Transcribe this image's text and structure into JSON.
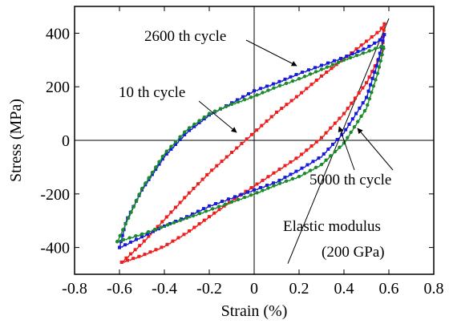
{
  "chart_data": {
    "type": "line",
    "xlabel": "Strain (%)",
    "ylabel": "Stress (MPa)",
    "xlim": [
      -0.8,
      0.8
    ],
    "ylim": [
      -500,
      500
    ],
    "xticks": [
      -0.8,
      -0.6,
      -0.4,
      -0.2,
      0,
      0.2,
      0.4,
      0.6,
      0.8
    ],
    "yticks": [
      -400,
      -200,
      0,
      200,
      400
    ],
    "xtick_labels": [
      "-0.8",
      "-0.6",
      "-0.4",
      "-0.2",
      "0",
      "0.2",
      "0.4",
      "0.6",
      "0.8"
    ],
    "ytick_labels": [
      "-400",
      "-200",
      "0",
      "200",
      "400"
    ],
    "series": [
      {
        "name": "10 th cycle",
        "color": "#ee1c1c",
        "marker": "square",
        "upper": [
          [
            -0.59,
            -455
          ],
          [
            -0.5,
            -385
          ],
          [
            -0.4,
            -295
          ],
          [
            -0.3,
            -205
          ],
          [
            -0.2,
            -120
          ],
          [
            -0.1,
            -45
          ],
          [
            0.0,
            30
          ],
          [
            0.1,
            105
          ],
          [
            0.2,
            170
          ],
          [
            0.3,
            240
          ],
          [
            0.4,
            305
          ],
          [
            0.5,
            370
          ],
          [
            0.56,
            410
          ],
          [
            0.58,
            435
          ]
        ],
        "lower": [
          [
            0.58,
            435
          ],
          [
            0.57,
            330
          ],
          [
            0.5,
            215
          ],
          [
            0.4,
            100
          ],
          [
            0.3,
            10
          ],
          [
            0.2,
            -60
          ],
          [
            0.1,
            -115
          ],
          [
            0.0,
            -170
          ],
          [
            -0.1,
            -225
          ],
          [
            -0.2,
            -285
          ],
          [
            -0.3,
            -345
          ],
          [
            -0.4,
            -395
          ],
          [
            -0.5,
            -430
          ],
          [
            -0.59,
            -455
          ]
        ]
      },
      {
        "name": "2600 th cycle",
        "color": "#1a1adc",
        "marker": "square",
        "upper": [
          [
            -0.6,
            -400
          ],
          [
            -0.57,
            -300
          ],
          [
            -0.5,
            -185
          ],
          [
            -0.4,
            -60
          ],
          [
            -0.3,
            30
          ],
          [
            -0.2,
            95
          ],
          [
            -0.1,
            140
          ],
          [
            0.0,
            185
          ],
          [
            0.1,
            215
          ],
          [
            0.2,
            250
          ],
          [
            0.3,
            280
          ],
          [
            0.4,
            310
          ],
          [
            0.5,
            345
          ],
          [
            0.56,
            375
          ],
          [
            0.58,
            395
          ]
        ],
        "lower": [
          [
            0.58,
            395
          ],
          [
            0.55,
            290
          ],
          [
            0.5,
            160
          ],
          [
            0.4,
            30
          ],
          [
            0.3,
            -60
          ],
          [
            0.2,
            -110
          ],
          [
            0.1,
            -155
          ],
          [
            0.0,
            -185
          ],
          [
            -0.1,
            -215
          ],
          [
            -0.2,
            -245
          ],
          [
            -0.3,
            -285
          ],
          [
            -0.4,
            -320
          ],
          [
            -0.5,
            -360
          ],
          [
            -0.6,
            -400
          ]
        ]
      },
      {
        "name": "5000 th cycle",
        "color": "#1a8a2a",
        "marker": "circle",
        "upper": [
          [
            -0.61,
            -378
          ],
          [
            -0.56,
            -290
          ],
          [
            -0.5,
            -180
          ],
          [
            -0.4,
            -50
          ],
          [
            -0.3,
            40
          ],
          [
            -0.2,
            100
          ],
          [
            -0.1,
            135
          ],
          [
            0.0,
            165
          ],
          [
            0.1,
            200
          ],
          [
            0.2,
            230
          ],
          [
            0.3,
            265
          ],
          [
            0.4,
            300
          ],
          [
            0.5,
            330
          ],
          [
            0.58,
            355
          ]
        ],
        "lower": [
          [
            0.58,
            355
          ],
          [
            0.55,
            250
          ],
          [
            0.5,
            120
          ],
          [
            0.4,
            -10
          ],
          [
            0.3,
            -90
          ],
          [
            0.2,
            -135
          ],
          [
            0.1,
            -165
          ],
          [
            0.0,
            -200
          ],
          [
            -0.1,
            -230
          ],
          [
            -0.2,
            -260
          ],
          [
            -0.3,
            -290
          ],
          [
            -0.4,
            -320
          ],
          [
            -0.5,
            -350
          ],
          [
            -0.61,
            -378
          ]
        ]
      }
    ],
    "reference_line": {
      "name": "Elastic modulus",
      "note": "(200 GPa)",
      "points": [
        [
          0.15,
          -460
        ],
        [
          0.6,
          455
        ]
      ]
    },
    "annotations": [
      {
        "id": "ann-2600",
        "text": "2600 th cycle"
      },
      {
        "id": "ann-10",
        "text": "10 th cycle"
      },
      {
        "id": "ann-5000",
        "text": "5000 th cycle"
      },
      {
        "id": "ann-modulus",
        "text": "Elastic modulus"
      },
      {
        "id": "ann-modulus-value",
        "text": "(200 GPa)"
      }
    ]
  }
}
